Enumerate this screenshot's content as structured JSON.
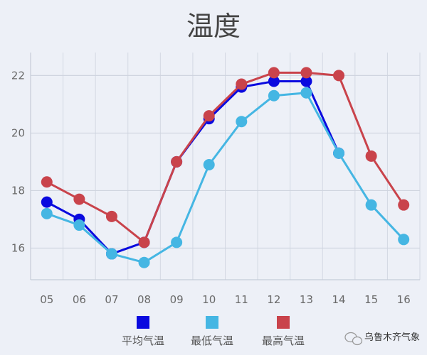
{
  "chart_data": {
    "type": "line",
    "title": "温度",
    "categories": [
      "05",
      "06",
      "07",
      "08",
      "09",
      "10",
      "11",
      "12",
      "13",
      "14",
      "15",
      "16"
    ],
    "ylim": [
      14.9,
      22.8
    ],
    "yticks": [
      16,
      18,
      20,
      22
    ],
    "grid": true,
    "legend_position": "bottom",
    "series": [
      {
        "name": "平均气温",
        "color": "#0a0adf",
        "values": [
          17.6,
          17.0,
          15.8,
          16.2,
          19.0,
          20.5,
          21.6,
          21.8,
          21.8,
          19.3,
          null,
          null
        ]
      },
      {
        "name": "最低气温",
        "color": "#45b6e3",
        "values": [
          17.2,
          16.8,
          15.8,
          15.5,
          16.2,
          18.9,
          20.4,
          21.3,
          21.4,
          19.3,
          17.5,
          16.3
        ]
      },
      {
        "name": "最高气温",
        "color": "#c9434b",
        "values": [
          18.3,
          17.7,
          17.1,
          16.2,
          19.0,
          20.6,
          21.7,
          22.1,
          22.1,
          22.0,
          19.2,
          17.5
        ]
      }
    ]
  },
  "watermark": {
    "text": "乌鲁木齐气象",
    "icon": "wechat-icon"
  }
}
